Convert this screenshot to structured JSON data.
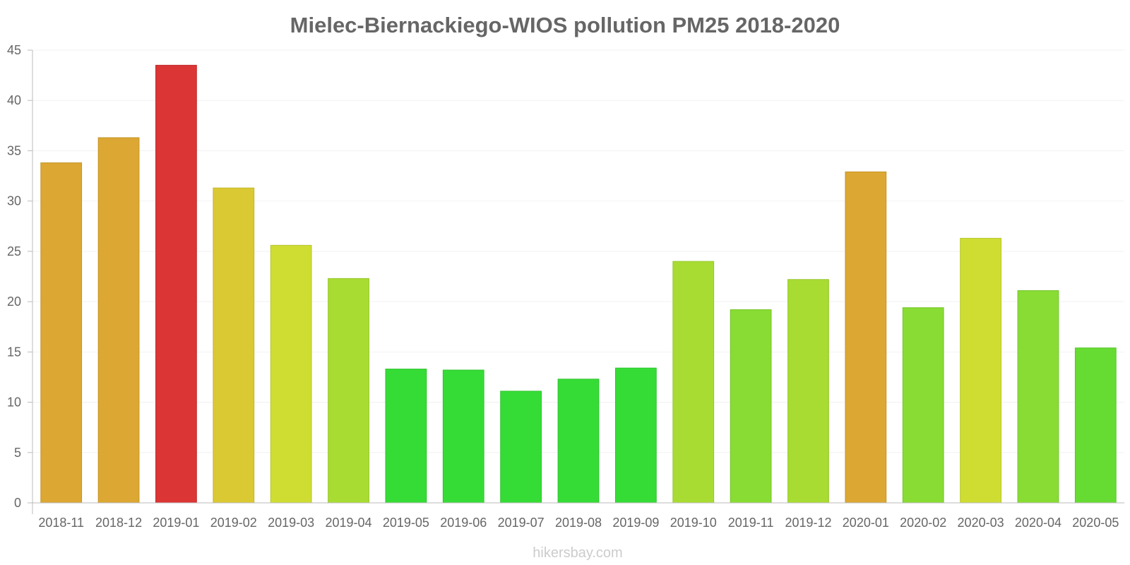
{
  "chart_data": {
    "type": "bar",
    "title": "Mielec-Biernackiego-WIOS pollution PM25 2018-2020",
    "xlabel": "",
    "ylabel": "",
    "ylim": [
      0,
      45
    ],
    "yticks": [
      0,
      5,
      10,
      15,
      20,
      25,
      30,
      35,
      40,
      45
    ],
    "grid": true,
    "categories": [
      "2018-11",
      "2018-12",
      "2019-01",
      "2019-02",
      "2019-03",
      "2019-04",
      "2019-05",
      "2019-06",
      "2019-07",
      "2019-08",
      "2019-09",
      "2019-10",
      "2019-11",
      "2019-12",
      "2020-01",
      "2020-02",
      "2020-03",
      "2020-04",
      "2020-05"
    ],
    "values": [
      33.8,
      36.3,
      43.5,
      31.3,
      25.6,
      22.3,
      13.3,
      13.2,
      11.1,
      12.3,
      13.4,
      24.0,
      19.2,
      22.2,
      32.9,
      19.4,
      26.3,
      21.1,
      15.4
    ],
    "colors": [
      "#dca833",
      "#dca833",
      "#db3535",
      "#dbc933",
      "#cfdd33",
      "#a9dc33",
      "#36dc36",
      "#36dc36",
      "#36dc36",
      "#36dc36",
      "#36dc36",
      "#a9dc33",
      "#88dc33",
      "#a9dc33",
      "#dca833",
      "#88dc33",
      "#cfdd33",
      "#88dc33",
      "#66dc33"
    ],
    "border_colors": [
      "#c69428",
      "#c69428",
      "#bf2a2a",
      "#c4b22a",
      "#b8c52a",
      "#95c52a",
      "#2ec42e",
      "#2ec42e",
      "#2ec42e",
      "#2ec42e",
      "#2ec42e",
      "#95c52a",
      "#76c52a",
      "#95c52a",
      "#c69428",
      "#76c52a",
      "#b8c52a",
      "#76c52a",
      "#58c52a"
    ]
  },
  "watermark": "hikersbay.com"
}
